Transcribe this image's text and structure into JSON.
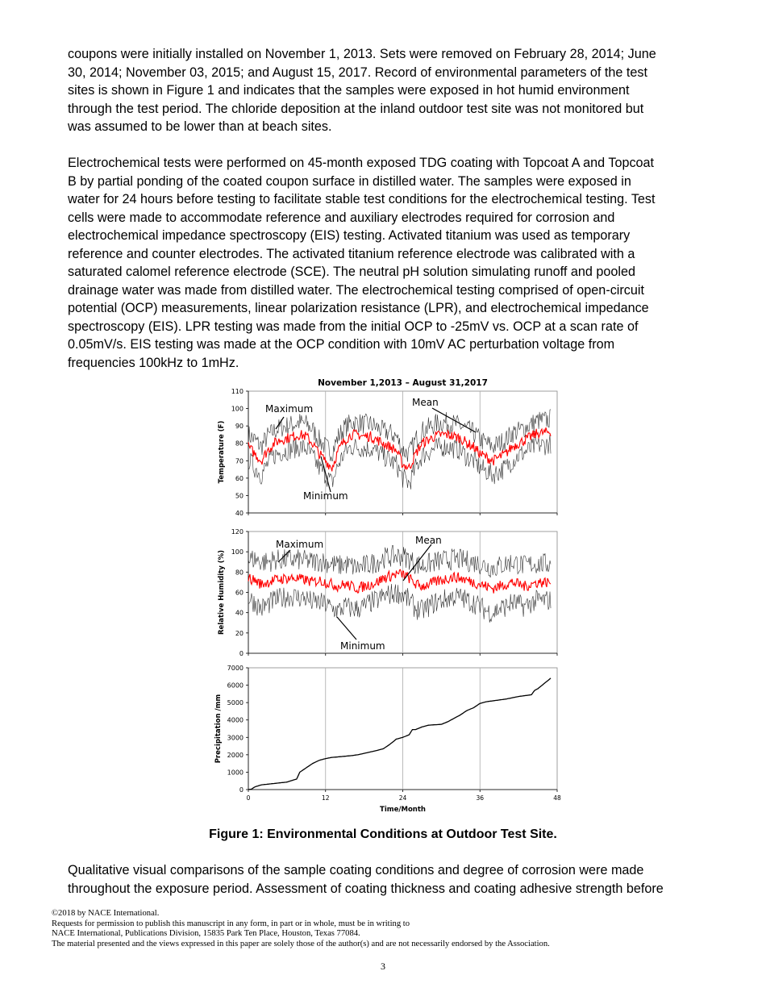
{
  "paragraph_1": [
    "coupons were initially installed on November 1, 2013. Sets were removed on February 28, 2014; June",
    "30, 2014; November 03, 2015; and August 15, 2017. Record of environmental parameters of the test",
    "sites is shown in Figure 1 and indicates that the samples were exposed in hot humid environment",
    "through the test period. The chloride deposition at the inland outdoor test site was not monitored but",
    "was assumed to be lower than at beach sites."
  ],
  "paragraph_2": [
    "Electrochemical tests were performed on 45-month exposed TDG coating with Topcoat A and Topcoat",
    "B by partial ponding of the coated coupon surface in distilled water. The samples were exposed in",
    "water for 24 hours before testing to facilitate stable test conditions for the electrochemical testing. Test",
    "cells were made to accommodate reference and auxiliary electrodes required for corrosion and",
    "electrochemical impedance spectroscopy (EIS) testing. Activated titanium was used as temporary",
    "reference and counter electrodes. The activated titanium reference electrode was calibrated with a",
    "saturated calomel reference electrode (SCE). The neutral pH solution simulating runoff and pooled",
    "drainage water was made from distilled water. The electrochemical testing comprised of open-circuit",
    "potential (OCP) measurements, linear polarization resistance (LPR), and electrochemical impedance",
    "spectroscopy (EIS). LPR testing was made from the initial OCP to -25mV vs. OCP at a scan rate of",
    "0.05mV/s. EIS testing was made at the OCP condition with 10mV AC perturbation voltage from",
    "frequencies 100kHz to 1mHz."
  ],
  "figure_caption": "Figure 1: Environmental Conditions at Outdoor Test Site.",
  "paragraph_3": [
    "Qualitative visual comparisons of the sample coating conditions and degree of corrosion were made",
    "throughout the exposure period. Assessment of coating thickness and coating adhesive strength before"
  ],
  "footer": [
    "©2018 by NACE International.",
    "Requests for permission to publish this manuscript in any form, in part or in whole, must be in writing to",
    "NACE International, Publications Division, 15835 Park Ten Place, Houston, Texas 77084.",
    "The material presented and the views expressed in this paper are solely those of the author(s) and are not necessarily endorsed by the Association."
  ],
  "page_number": "3",
  "chart_data": [
    {
      "type": "line",
      "title": "November 1,2013 – August 31,2017",
      "ylabel": "Temperature (F)",
      "ylim": [
        40,
        110
      ],
      "yticks": [
        "40",
        "50",
        "60",
        "70",
        "80",
        "90",
        "100",
        "110"
      ],
      "xlim": [
        0,
        48
      ],
      "grid": "vertical at 12-month intervals",
      "annotations": [
        "Maximum",
        "Minimum",
        "Mean"
      ],
      "colors": {
        "mean": "#ff0000",
        "max": "#000000",
        "min": "#000000"
      },
      "x_months": [
        0,
        1,
        2,
        3,
        4,
        5,
        6,
        7,
        8,
        9,
        10,
        11,
        12,
        13,
        14,
        15,
        16,
        17,
        18,
        19,
        20,
        21,
        22,
        23,
        24,
        25,
        26,
        27,
        28,
        29,
        30,
        31,
        32,
        33,
        34,
        35,
        36,
        37,
        38,
        39,
        40,
        41,
        42,
        43,
        44,
        45,
        46,
        47
      ],
      "series": [
        {
          "name": "Mean",
          "values": [
            78,
            74,
            70,
            76,
            80,
            82,
            83,
            84,
            85,
            84,
            80,
            74,
            70,
            66,
            76,
            82,
            85,
            85,
            84,
            84,
            82,
            80,
            78,
            76,
            68,
            66,
            74,
            80,
            82,
            84,
            85,
            85,
            84,
            83,
            80,
            78,
            74,
            72,
            70,
            72,
            74,
            78,
            80,
            82,
            84,
            86,
            86,
            87
          ]
        },
        {
          "name": "Maximum",
          "values": [
            85,
            82,
            78,
            84,
            87,
            89,
            90,
            91,
            92,
            91,
            88,
            82,
            78,
            75,
            84,
            89,
            92,
            92,
            91,
            91,
            89,
            87,
            86,
            84,
            76,
            74,
            82,
            87,
            89,
            91,
            92,
            92,
            91,
            90,
            88,
            86,
            82,
            80,
            78,
            80,
            82,
            86,
            87,
            89,
            91,
            93,
            93,
            94
          ]
        },
        {
          "name": "Minimum",
          "values": [
            71,
            66,
            62,
            68,
            73,
            75,
            76,
            77,
            78,
            77,
            72,
            66,
            62,
            57,
            68,
            75,
            78,
            78,
            77,
            77,
            75,
            73,
            70,
            68,
            60,
            57,
            66,
            73,
            75,
            77,
            78,
            78,
            77,
            76,
            72,
            70,
            66,
            64,
            62,
            64,
            66,
            70,
            73,
            75,
            77,
            79,
            79,
            80
          ]
        }
      ]
    },
    {
      "type": "line",
      "ylabel": "Relative Humidity (%)",
      "ylim": [
        0,
        120
      ],
      "yticks": [
        "0",
        "20",
        "40",
        "60",
        "80",
        "100",
        "120"
      ],
      "xlim": [
        0,
        48
      ],
      "grid": "vertical at 12-month intervals",
      "annotations": [
        "Maximum",
        "Minimum",
        "Mean"
      ],
      "colors": {
        "mean": "#ff0000",
        "max": "#000000",
        "min": "#000000"
      },
      "x_months": [
        0,
        1,
        2,
        3,
        4,
        5,
        6,
        7,
        8,
        9,
        10,
        11,
        12,
        13,
        14,
        15,
        16,
        17,
        18,
        19,
        20,
        21,
        22,
        23,
        24,
        25,
        26,
        27,
        28,
        29,
        30,
        31,
        32,
        33,
        34,
        35,
        36,
        37,
        38,
        39,
        40,
        41,
        42,
        43,
        44,
        45,
        46,
        47
      ],
      "series": [
        {
          "name": "Mean",
          "values": [
            74,
            72,
            68,
            70,
            72,
            73,
            74,
            74,
            73,
            72,
            70,
            72,
            70,
            68,
            66,
            68,
            66,
            64,
            66,
            68,
            70,
            74,
            76,
            78,
            78,
            74,
            68,
            66,
            68,
            70,
            72,
            74,
            75,
            74,
            72,
            70,
            68,
            66,
            64,
            66,
            68,
            70,
            68,
            66,
            68,
            70,
            70,
            70
          ]
        },
        {
          "name": "Maximum",
          "values": [
            92,
            93,
            90,
            90,
            92,
            92,
            92,
            92,
            92,
            91,
            90,
            91,
            90,
            88,
            86,
            88,
            86,
            84,
            86,
            88,
            90,
            94,
            95,
            96,
            96,
            93,
            88,
            86,
            88,
            90,
            91,
            92,
            93,
            92,
            91,
            90,
            88,
            86,
            84,
            86,
            88,
            90,
            88,
            86,
            88,
            88,
            88,
            88
          ]
        },
        {
          "name": "Minimum",
          "values": [
            55,
            50,
            44,
            48,
            52,
            54,
            56,
            56,
            55,
            54,
            50,
            50,
            48,
            44,
            42,
            46,
            44,
            44,
            46,
            50,
            52,
            56,
            58,
            60,
            58,
            52,
            44,
            42,
            46,
            50,
            52,
            54,
            56,
            55,
            52,
            50,
            46,
            42,
            40,
            44,
            46,
            50,
            48,
            46,
            50,
            52,
            52,
            52
          ]
        }
      ]
    },
    {
      "type": "line",
      "ylabel": "Precipitation /mm",
      "xlabel": "Time/Month",
      "ylim": [
        0,
        7000
      ],
      "yticks": [
        "0",
        "1000",
        "2000",
        "3000",
        "4000",
        "5000",
        "6000",
        "7000"
      ],
      "xlim": [
        0,
        48
      ],
      "xticks": [
        "0",
        "12",
        "24",
        "36",
        "48"
      ],
      "grid": "vertical at 12-month intervals",
      "colors": {
        "line": "#000000"
      },
      "x": [
        0,
        0.5,
        1,
        2,
        4,
        6,
        7,
        7.5,
        8,
        9,
        10,
        11,
        12,
        13,
        14,
        16,
        17,
        18,
        20,
        21,
        22,
        23,
        24,
        25,
        25.5,
        26,
        27,
        28,
        30,
        31,
        32,
        33,
        34,
        35,
        36,
        37,
        40,
        42,
        44,
        44.5,
        45,
        46,
        46.5,
        47
      ],
      "values": [
        0,
        30,
        150,
        270,
        350,
        430,
        550,
        600,
        1000,
        1250,
        1500,
        1680,
        1780,
        1850,
        1880,
        1950,
        2000,
        2080,
        2250,
        2350,
        2600,
        2900,
        3000,
        3150,
        3450,
        3450,
        3600,
        3700,
        3750,
        3900,
        4100,
        4300,
        4550,
        4700,
        4950,
        5050,
        5200,
        5350,
        5450,
        5700,
        5800,
        6100,
        6250,
        6400
      ]
    }
  ]
}
